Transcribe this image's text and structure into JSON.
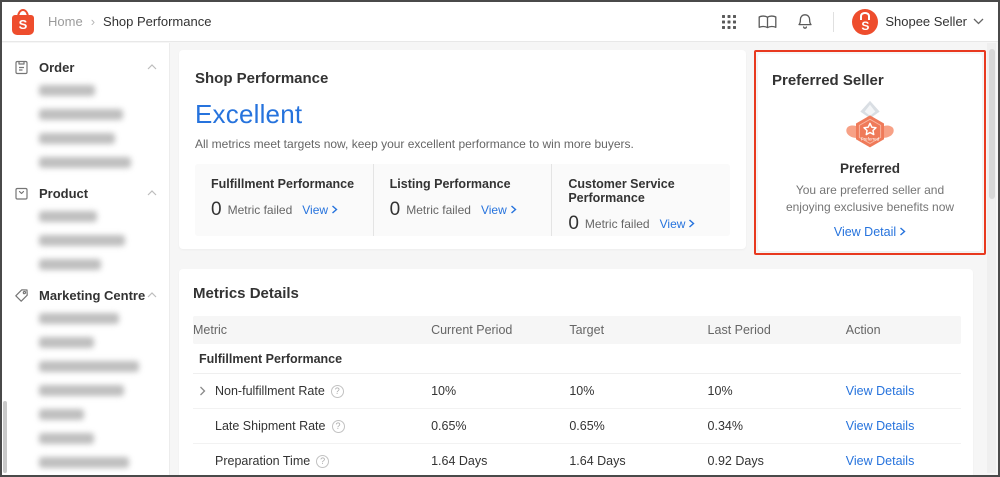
{
  "topbar": {
    "breadcrumb": {
      "home": "Home",
      "separator": "›",
      "current": "Shop Performance"
    },
    "user": {
      "name": "Shopee Seller"
    }
  },
  "sidebar": {
    "sections": [
      {
        "label": "Order",
        "icon": "order-icon",
        "blurred_item_widths": [
          56,
          84,
          76,
          92
        ]
      },
      {
        "label": "Product",
        "icon": "product-icon",
        "blurred_item_widths": [
          58,
          86,
          62
        ]
      },
      {
        "label": "Marketing Centre",
        "icon": "marketing-icon",
        "blurred_item_widths": [
          80,
          55,
          100,
          85,
          45,
          55,
          90
        ]
      }
    ]
  },
  "shop_performance": {
    "title": "Shop Performance",
    "rating": "Excellent",
    "subtitle": "All metrics meet targets now, keep your excellent performance to win more buyers.",
    "summary": [
      {
        "label": "Fulfillment Performance",
        "count": "0",
        "unit": "Metric failed",
        "link": "View"
      },
      {
        "label": "Listing Performance",
        "count": "0",
        "unit": "Metric failed",
        "link": "View"
      },
      {
        "label": "Customer Service Performance",
        "count": "0",
        "unit": "Metric failed",
        "link": "View"
      }
    ]
  },
  "preferred_seller": {
    "title": "Preferred Seller",
    "badge_label": "Preferred",
    "status": "Preferred",
    "description": "You are preferred seller and enjoying exclusive benefits now",
    "link": "View Detail"
  },
  "metrics_details": {
    "title": "Metrics Details",
    "columns": [
      "Metric",
      "Current Period",
      "Target",
      "Last Period",
      "Action"
    ],
    "group": "Fulfillment Performance",
    "rows": [
      {
        "metric": "Non-fulfillment Rate",
        "current": "10%",
        "target": "10%",
        "last": "10%",
        "action": "View Details"
      },
      {
        "metric": "Late Shipment Rate",
        "current": "0.65%",
        "target": "0.65%",
        "last": "0.34%",
        "action": "View Details"
      },
      {
        "metric": "Preparation Time",
        "current": "1.64 Days",
        "target": "1.64 Days",
        "last": "0.92 Days",
        "action": "View Details"
      }
    ]
  },
  "colors": {
    "brand_orange": "#EE4D2D",
    "link_blue": "#2673DD",
    "badge_orange": "#EF7A59",
    "annotation_red": "#E8391F"
  }
}
